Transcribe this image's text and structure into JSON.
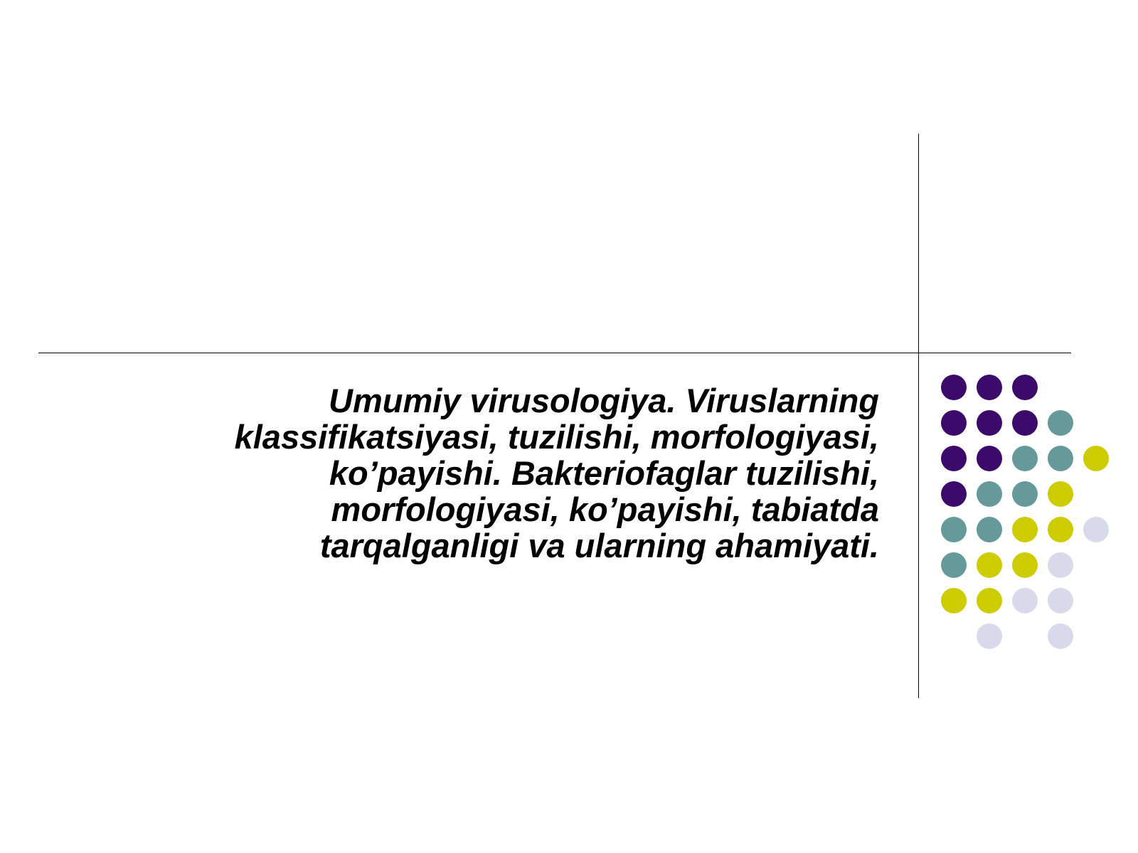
{
  "slide": {
    "title": "Umumiy virusologiya. Viruslarning\nklassifikatsiyasi, tuzilishi, morfologiyasi,\nko’payishi. Bakteriofaglar tuzilishi,\nmorfologiyasi, ko’payishi, tabiatda\ntarqalganligi  va ularning ahamiyati."
  },
  "colors": {
    "purple": "#3b0a6b",
    "teal": "#669999",
    "olive": "#cccc00",
    "lavender": "#d9d9ec",
    "line": "#000000"
  },
  "dot_grid": {
    "rows": [
      [
        "purple",
        "purple",
        "purple",
        null,
        null
      ],
      [
        "purple",
        "purple",
        "purple",
        "teal",
        null
      ],
      [
        "purple",
        "purple",
        "teal",
        "teal",
        "olive"
      ],
      [
        "purple",
        "teal",
        "teal",
        "olive",
        null
      ],
      [
        "teal",
        "teal",
        "olive",
        "olive",
        "lavender"
      ],
      [
        "teal",
        "olive",
        "olive",
        "lavender",
        null
      ],
      [
        "olive",
        "olive",
        "lavender",
        "lavender",
        null
      ],
      [
        null,
        "lavender",
        null,
        "lavender",
        null
      ]
    ]
  }
}
